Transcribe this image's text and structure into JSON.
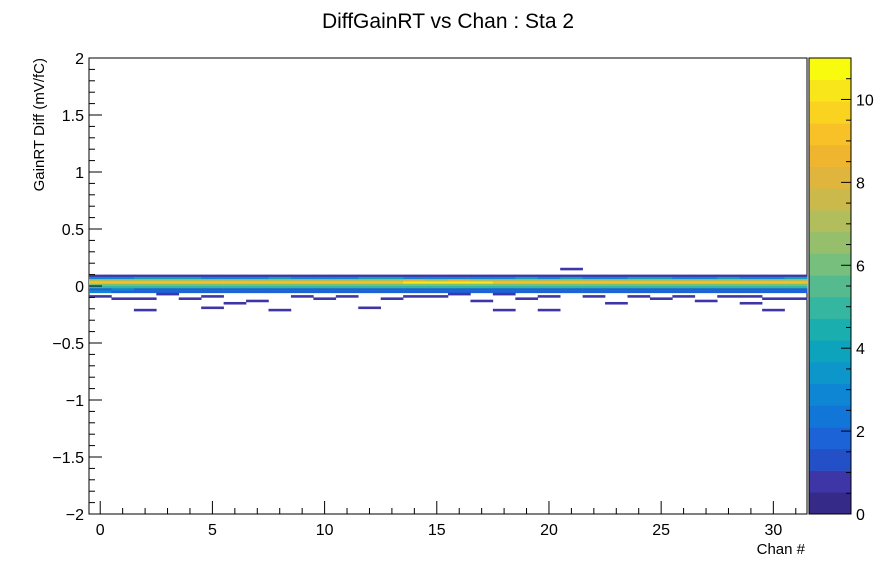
{
  "chart_data": {
    "type": "heatmap",
    "title": "DiffGainRT vs Chan : Sta 2",
    "xlabel": "Chan #",
    "ylabel": "GainRT Diff (mV/fC)",
    "xlim": [
      -0.5,
      31.5
    ],
    "ylim": [
      -2,
      2
    ],
    "zlim": [
      0,
      11
    ],
    "x_ticks": [
      0,
      5,
      10,
      15,
      20,
      25,
      30
    ],
    "x_tick_labels": [
      "0",
      "5",
      "10",
      "15",
      "20",
      "25",
      "30"
    ],
    "y_ticks": [
      -2,
      -1.5,
      -1,
      -0.5,
      0,
      0.5,
      1,
      1.5,
      2
    ],
    "y_tick_labels": [
      "−2",
      "−1.5",
      "−1",
      "−0.5",
      "0",
      "0.5",
      "1",
      "1.5",
      "2"
    ],
    "z_ticks": [
      0,
      2,
      4,
      6,
      8,
      10
    ],
    "z_tick_labels": [
      "0",
      "2",
      "4",
      "6",
      "8",
      "10"
    ],
    "colorbar": true,
    "bin_width_y": 0.02,
    "y_bin_centers": [
      0.15,
      0.09,
      0.07,
      0.05,
      0.03,
      0.01,
      -0.01,
      -0.03,
      -0.05,
      -0.07,
      -0.09,
      -0.11,
      -0.13,
      -0.15,
      -0.17,
      -0.19,
      -0.21
    ],
    "counts_by_channel": [
      [
        0,
        1,
        3,
        7,
        9,
        6,
        5,
        2,
        3,
        0,
        1,
        0,
        0,
        0,
        0,
        0,
        0
      ],
      [
        0,
        1,
        3,
        7,
        9,
        6,
        5,
        3,
        2,
        0,
        0,
        1,
        0,
        0,
        0,
        0,
        0
      ],
      [
        0,
        1,
        4,
        7,
        9,
        6,
        5,
        2,
        2,
        0,
        0,
        1,
        0,
        0,
        0,
        0,
        1
      ],
      [
        0,
        1,
        4,
        7,
        9,
        6,
        5,
        2,
        2,
        1,
        0,
        0,
        0,
        0,
        0,
        0,
        0
      ],
      [
        0,
        1,
        4,
        7,
        9,
        6,
        5,
        2,
        2,
        0,
        0,
        1,
        0,
        0,
        0,
        0,
        0
      ],
      [
        0,
        1,
        3,
        7,
        9,
        6,
        5,
        2,
        2,
        0,
        1,
        0,
        0,
        0,
        0,
        1,
        0
      ],
      [
        0,
        1,
        3,
        7,
        9,
        6,
        5,
        2,
        2,
        0,
        0,
        0,
        0,
        1,
        0,
        0,
        0
      ],
      [
        0,
        1,
        3,
        7,
        9,
        6,
        5,
        2,
        2,
        0,
        0,
        0,
        1,
        0,
        0,
        0,
        0
      ],
      [
        0,
        1,
        4,
        7,
        9,
        6,
        5,
        2,
        2,
        0,
        0,
        0,
        0,
        0,
        0,
        0,
        1
      ],
      [
        0,
        1,
        3,
        7,
        9,
        6,
        5,
        2,
        2,
        0,
        1,
        0,
        0,
        0,
        0,
        0,
        0
      ],
      [
        0,
        1,
        3,
        7,
        9,
        6,
        5,
        2,
        2,
        0,
        0,
        1,
        0,
        0,
        0,
        0,
        0
      ],
      [
        0,
        1,
        3,
        7,
        9,
        6,
        5,
        2,
        2,
        0,
        1,
        0,
        0,
        0,
        0,
        0,
        0
      ],
      [
        0,
        1,
        4,
        7,
        9,
        6,
        5,
        2,
        2,
        0,
        0,
        0,
        0,
        0,
        0,
        1,
        0
      ],
      [
        0,
        1,
        4,
        7,
        9,
        6,
        5,
        2,
        2,
        0,
        0,
        1,
        0,
        0,
        0,
        0,
        0
      ],
      [
        0,
        1,
        3,
        8,
        10,
        6,
        5,
        2,
        2,
        0,
        1,
        0,
        0,
        0,
        0,
        0,
        0
      ],
      [
        0,
        1,
        3,
        7,
        10,
        6,
        5,
        2,
        2,
        0,
        1,
        0,
        0,
        0,
        0,
        0,
        0
      ],
      [
        0,
        1,
        3,
        8,
        10,
        6,
        5,
        2,
        2,
        1,
        0,
        0,
        0,
        0,
        0,
        0,
        0
      ],
      [
        0,
        1,
        3,
        7,
        10,
        6,
        5,
        2,
        2,
        0,
        0,
        0,
        1,
        0,
        0,
        0,
        0
      ],
      [
        0,
        1,
        3,
        7,
        9,
        6,
        5,
        2,
        2,
        1,
        0,
        0,
        0,
        0,
        0,
        0,
        1
      ],
      [
        0,
        1,
        4,
        7,
        9,
        6,
        5,
        2,
        2,
        0,
        0,
        1,
        0,
        0,
        0,
        0,
        0
      ],
      [
        0,
        1,
        3,
        7,
        9,
        6,
        5,
        2,
        2,
        0,
        1,
        0,
        0,
        0,
        0,
        0,
        1
      ],
      [
        1,
        1,
        4,
        7,
        9,
        6,
        5,
        2,
        2,
        0,
        0,
        0,
        0,
        0,
        0,
        0,
        0
      ],
      [
        0,
        1,
        3,
        7,
        9,
        6,
        5,
        2,
        2,
        0,
        1,
        0,
        0,
        0,
        0,
        0,
        0
      ],
      [
        0,
        1,
        3,
        7,
        9,
        6,
        5,
        2,
        2,
        0,
        0,
        0,
        0,
        1,
        0,
        0,
        0
      ],
      [
        0,
        1,
        4,
        7,
        9,
        6,
        5,
        2,
        2,
        0,
        1,
        0,
        0,
        0,
        0,
        0,
        0
      ],
      [
        0,
        1,
        4,
        7,
        9,
        6,
        5,
        2,
        2,
        0,
        0,
        1,
        0,
        0,
        0,
        0,
        0
      ],
      [
        0,
        1,
        3,
        7,
        9,
        6,
        5,
        2,
        2,
        0,
        1,
        0,
        0,
        0,
        0,
        0,
        0
      ],
      [
        0,
        1,
        3,
        7,
        9,
        6,
        5,
        2,
        2,
        0,
        0,
        0,
        1,
        0,
        0,
        0,
        0
      ],
      [
        0,
        1,
        4,
        7,
        9,
        6,
        5,
        2,
        2,
        0,
        1,
        0,
        0,
        0,
        0,
        0,
        0
      ],
      [
        0,
        1,
        3,
        7,
        9,
        6,
        5,
        2,
        2,
        0,
        1,
        0,
        0,
        1,
        0,
        0,
        0
      ],
      [
        0,
        1,
        3,
        7,
        9,
        6,
        5,
        2,
        2,
        0,
        0,
        1,
        0,
        0,
        0,
        0,
        1
      ],
      [
        0,
        1,
        4,
        7,
        9,
        6,
        5,
        2,
        2,
        0,
        0,
        1,
        0,
        0,
        0,
        0,
        0
      ]
    ],
    "palette": [
      "#352a87",
      "#3e35a6",
      "#2350c7",
      "#1b63d6",
      "#1276d9",
      "#0f86d3",
      "#0d96c9",
      "#0ea3bd",
      "#1aaeaf",
      "#35b6a1",
      "#55bb8f",
      "#76bf7c",
      "#96bf6c",
      "#b2bd5c",
      "#ccb94c",
      "#e0b53d",
      "#f0b52f",
      "#f8c128",
      "#fad320",
      "#f8e61a",
      "#f9fb0e"
    ]
  }
}
